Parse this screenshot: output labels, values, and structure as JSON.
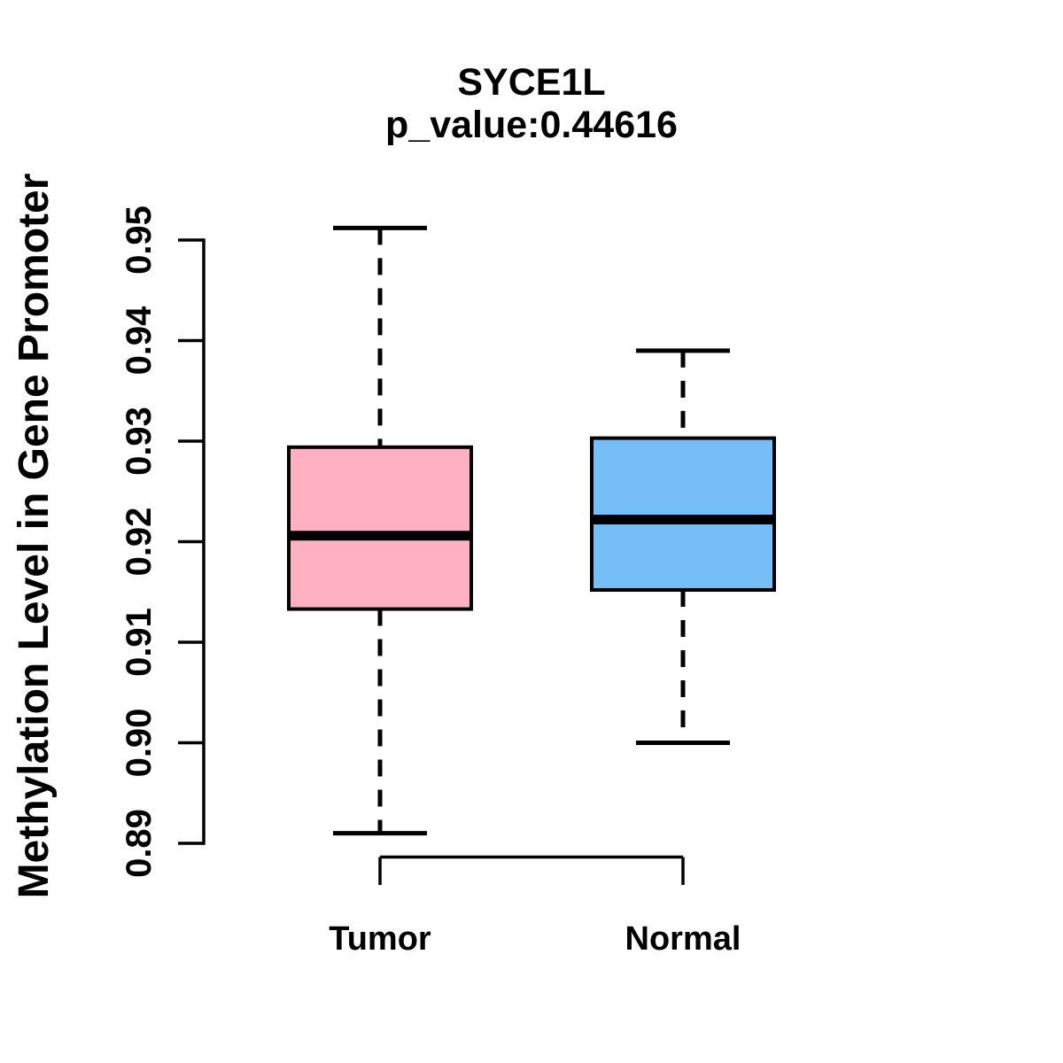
{
  "figure": {
    "background_color": "#ffffff",
    "foreground_color": "#000000"
  },
  "chart_data": {
    "type": "boxplot",
    "title": "SYCE1L",
    "subtitle": "p_value:0.44616",
    "ylabel": "Methylation Level in Gene Promoter",
    "xlabel": "",
    "ylim": [
      0.89,
      0.95
    ],
    "y_ticks": [
      0.89,
      0.9,
      0.91,
      0.92,
      0.93,
      0.94,
      0.95
    ],
    "y_tick_decimals": 2,
    "grid": false,
    "legend": false,
    "categories": [
      "Tumor",
      "Normal"
    ],
    "series": [
      {
        "name": "Tumor",
        "fill_color": "#FFB0C3",
        "whisker_low": 0.891,
        "q1": 0.9133,
        "median": 0.9206,
        "q3": 0.9294,
        "whisker_high": 0.9512
      },
      {
        "name": "Normal",
        "fill_color": "#76BEF8",
        "whisker_low": 0.9,
        "q1": 0.9152,
        "median": 0.9222,
        "q3": 0.9303,
        "whisker_high": 0.939
      }
    ],
    "box_border_color": "#000000",
    "median_color": "#000000",
    "whisker_style": "dashed",
    "axis_color": "#000000"
  }
}
